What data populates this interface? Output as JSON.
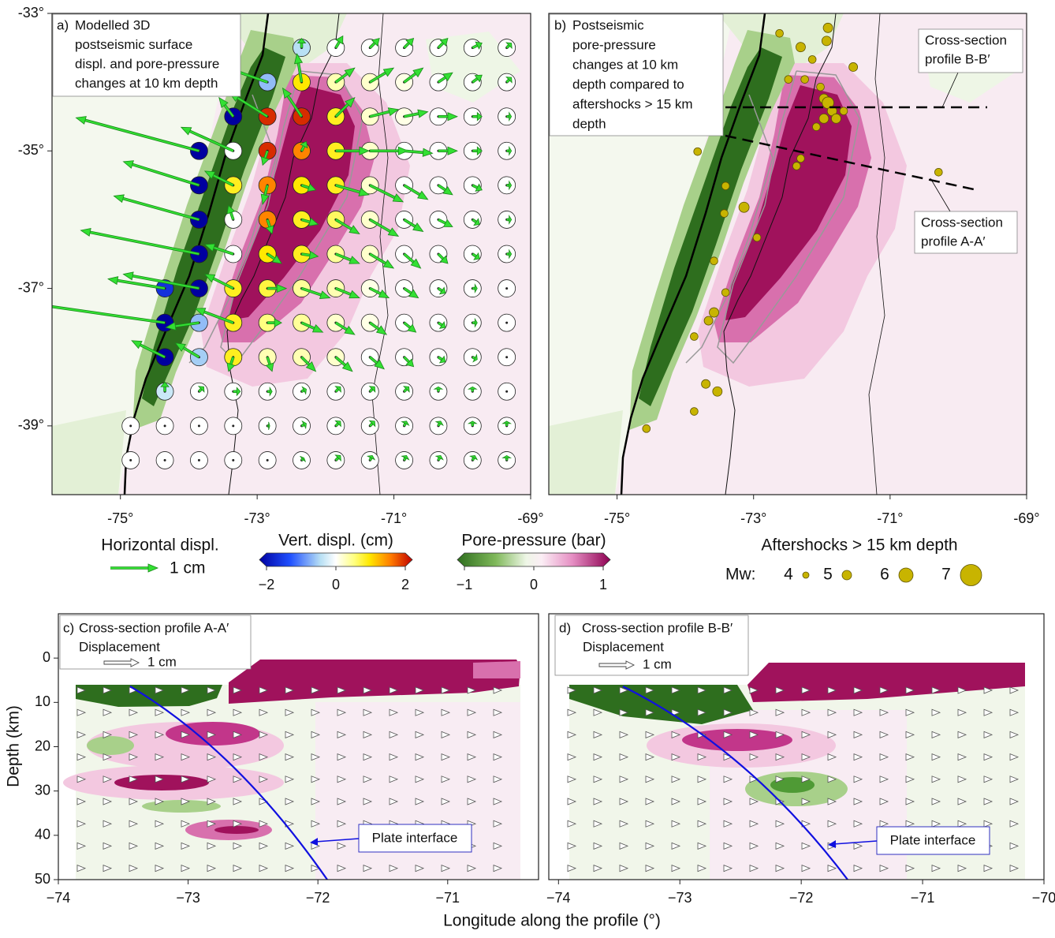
{
  "panel_a": {
    "label": "a)",
    "title_lines": [
      "Modelled 3D",
      "postseismic surface",
      "displ. and pore-pressure",
      "changes at 10 km depth"
    ],
    "xlim": [
      -76,
      -69
    ],
    "ylim": [
      -40,
      -33
    ],
    "xticks": [
      {
        "value": -75,
        "label": "-75°"
      },
      {
        "value": -73,
        "label": "-73°"
      },
      {
        "value": -71,
        "label": "-71°"
      },
      {
        "value": -69,
        "label": "-69°"
      }
    ],
    "yticks": [
      {
        "value": -33,
        "label": "-33°"
      },
      {
        "value": -35,
        "label": "-35°"
      },
      {
        "value": -37,
        "label": "-37°"
      },
      {
        "value": -39,
        "label": "-39°"
      }
    ],
    "stations": [
      {
        "lat": -33.5,
        "lon": [
          -72.35,
          -71.85,
          -71.35,
          -70.85,
          -70.35,
          -69.85,
          -69.35
        ],
        "up": [
          -0.4,
          0,
          0,
          0,
          0,
          0,
          0
        ],
        "east": [
          0,
          0.15,
          0.2,
          0.2,
          0.2,
          0.2,
          0.1
        ],
        "north": [
          0.2,
          0.25,
          0.2,
          0.2,
          0.2,
          0.1,
          0.1
        ]
      },
      {
        "lat": -34,
        "lon": [
          -72.85,
          -72.35,
          -71.85,
          -71.35,
          -70.85,
          -70.35,
          -69.85,
          -69.35
        ],
        "up": [
          -0.6,
          0.9,
          0.3,
          0.2,
          0.1,
          0,
          0,
          0
        ],
        "east": [
          -1.7,
          -0.1,
          0.4,
          0.5,
          0.4,
          0.3,
          0.2,
          0.1
        ],
        "north": [
          0.6,
          0.6,
          0.3,
          0.3,
          0.3,
          0.2,
          0.15,
          0.1
        ]
      },
      {
        "lat": -34.5,
        "lon": [
          -73.35,
          -72.85,
          -72.35,
          -71.85,
          -71.35,
          -70.85,
          -70.35,
          -69.85,
          -69.35
        ],
        "up": [
          -2,
          1.8,
          1.8,
          0.8,
          0.2,
          0.1,
          0,
          0,
          0
        ],
        "east": [
          -0.3,
          -0.8,
          -0.4,
          0.4,
          0.6,
          0.5,
          0.4,
          0.2,
          0.1
        ],
        "north": [
          0.4,
          0.5,
          0.6,
          0.4,
          0.15,
          0.1,
          0,
          0,
          0
        ]
      },
      {
        "lat": -35,
        "lon": [
          -73.85,
          -73.35,
          -72.85,
          -72.35,
          -71.85,
          -71.35,
          -70.85,
          -70.35,
          -69.85,
          -69.35
        ],
        "up": [
          -2,
          0,
          1.8,
          1.4,
          0.8,
          0.2,
          0,
          0,
          0,
          0
        ],
        "east": [
          -2.6,
          -1.1,
          -0.1,
          0.1,
          0.7,
          0.8,
          0.6,
          0.4,
          0.2,
          0.1
        ],
        "north": [
          0.7,
          0.5,
          -0.3,
          0.2,
          0,
          0,
          -0.05,
          0,
          0,
          0
        ]
      },
      {
        "lat": -35.5,
        "lon": [
          -73.85,
          -73.35,
          -72.85,
          -72.35,
          -71.85,
          -71.35,
          -70.85,
          -70.35,
          -69.85,
          -69.35
        ],
        "up": [
          -2,
          0.8,
          1.4,
          0.9,
          0.8,
          0.2,
          0,
          0,
          0,
          0
        ],
        "east": [
          -1.6,
          -0.6,
          -0.1,
          0.3,
          0.7,
          0.7,
          0.5,
          0.3,
          0.2,
          0.1
        ],
        "north": [
          0.5,
          0.3,
          -0.4,
          -0.1,
          -0.2,
          -0.35,
          -0.3,
          -0.2,
          -0.1,
          0
        ]
      },
      {
        "lat": -36,
        "lon": [
          -73.85,
          -73.35,
          -72.85,
          -72.35,
          -71.85,
          -71.35,
          -70.85,
          -70.35,
          -69.85,
          -69.35
        ],
        "up": [
          -2,
          0,
          1.4,
          0.8,
          0.6,
          0.2,
          0,
          0,
          0,
          0
        ],
        "east": [
          -1.8,
          -0.1,
          0.1,
          0.35,
          0.5,
          0.6,
          0.4,
          0.3,
          0.15,
          0.1
        ],
        "north": [
          0.5,
          0.3,
          -0.3,
          -0.1,
          -0.3,
          -0.35,
          -0.25,
          -0.15,
          -0.1,
          0
        ]
      },
      {
        "lat": -36.5,
        "lon": [
          -73.85,
          -73.35,
          -72.85,
          -72.35,
          -71.85,
          -71.35,
          -70.85,
          -70.35,
          -69.85,
          -69.35
        ],
        "up": [
          -2,
          0,
          0.9,
          0.8,
          0.4,
          0.2,
          0,
          0,
          0,
          0
        ],
        "east": [
          -2.5,
          -0.6,
          0.3,
          0.35,
          0.5,
          0.5,
          0.35,
          0.2,
          0.15,
          0.1
        ],
        "north": [
          0.5,
          0.2,
          -0.2,
          -0.05,
          -0.2,
          -0.3,
          -0.3,
          -0.2,
          -0.1,
          0
        ]
      },
      {
        "lat": -37,
        "lon": [
          -74.35,
          -73.85,
          -73.35,
          -72.85,
          -72.35,
          -71.85,
          -71.35,
          -70.85,
          -70.35,
          -69.85,
          -69.35
        ],
        "up": [
          -1.5,
          -2,
          0.8,
          0.7,
          0.4,
          0.3,
          0.1,
          0,
          0,
          0,
          0
        ],
        "east": [
          -1.2,
          -1.6,
          -0.6,
          0.4,
          0.6,
          0.5,
          0.4,
          0.3,
          0.15,
          0.1,
          0
        ],
        "north": [
          0.2,
          0.3,
          0.3,
          0,
          -0.2,
          -0.2,
          -0.2,
          -0.2,
          -0.1,
          0,
          0
        ]
      },
      {
        "lat": -37.5,
        "lon": [
          -74.35,
          -73.85,
          -73.35,
          -72.85,
          -72.35,
          -71.85,
          -71.35,
          -70.85,
          -70.35,
          -69.85,
          -69.35
        ],
        "up": [
          -2,
          -0.6,
          0.8,
          0.5,
          0.4,
          0.2,
          0.1,
          0,
          0,
          0,
          0
        ],
        "east": [
          -2.8,
          -0.7,
          -0.8,
          0.3,
          0.45,
          0.4,
          0.35,
          0.25,
          0.15,
          0.1,
          0
        ],
        "north": [
          0.4,
          -0.1,
          0.3,
          0,
          -0.2,
          -0.25,
          -0.25,
          -0.2,
          -0.1,
          0,
          0
        ]
      },
      {
        "lat": -38,
        "lon": [
          -74.35,
          -73.85,
          -73.35,
          -72.85,
          -72.35,
          -71.85,
          -71.35,
          -70.85,
          -70.35,
          -69.85,
          -69.35
        ],
        "up": [
          -2,
          -0.5,
          0.8,
          0.3,
          0.3,
          0.2,
          0,
          0,
          0,
          0,
          0
        ],
        "east": [
          -0.7,
          -0.5,
          -0.1,
          0.1,
          0.3,
          0.35,
          0.3,
          0.2,
          0.15,
          0.1,
          0
        ],
        "north": [
          0.35,
          0.3,
          -0.3,
          -0.3,
          -0.3,
          -0.3,
          -0.25,
          -0.2,
          -0.1,
          -0.05,
          0
        ]
      },
      {
        "lat": -38.5,
        "lon": [
          -74.35,
          -73.85,
          -73.35,
          -72.85,
          -72.35,
          -71.85,
          -71.35,
          -70.85,
          -70.35,
          -69.85,
          -69.35
        ],
        "up": [
          -0.3,
          0,
          0,
          0,
          0,
          0,
          0,
          0,
          0,
          0,
          0
        ],
        "east": [
          0,
          0.1,
          0.15,
          0.1,
          0.1,
          0.1,
          0.1,
          0.1,
          0,
          0,
          0
        ],
        "north": [
          0.2,
          0.1,
          0,
          0,
          0.05,
          0.1,
          0.1,
          0.1,
          0.1,
          0.1,
          0
        ]
      },
      {
        "lat": -39,
        "lon": [
          -74.85,
          -74.35,
          -73.85,
          -73.35,
          -72.85,
          -72.35,
          -71.85,
          -71.35,
          -70.85,
          -70.35,
          -69.85,
          -69.35
        ],
        "up": [
          0,
          0,
          0,
          0,
          0,
          0,
          0,
          0,
          0,
          0,
          0,
          0
        ],
        "east": [
          0,
          0,
          0,
          0,
          0.05,
          0.1,
          0.1,
          0.1,
          0.05,
          0.05,
          0,
          0
        ],
        "north": [
          0,
          0,
          0,
          0,
          0,
          0.05,
          0.1,
          0.1,
          0.1,
          0.1,
          0.1,
          0.1
        ]
      },
      {
        "lat": -39.5,
        "lon": [
          -74.85,
          -74.35,
          -73.85,
          -73.35,
          -72.85,
          -72.35,
          -71.85,
          -71.35,
          -70.85,
          -70.35,
          -69.85,
          -69.35
        ],
        "up": [
          0,
          0,
          0,
          0,
          0,
          0,
          0,
          0,
          0,
          0,
          0,
          0
        ],
        "east": [
          0,
          0,
          0,
          0,
          0,
          0.05,
          0.1,
          0.05,
          0.05,
          0.05,
          0.05,
          0
        ],
        "north": [
          0,
          0,
          0,
          0,
          0,
          0.05,
          0.1,
          0.1,
          0.1,
          0.1,
          0.1,
          0.1
        ]
      }
    ]
  },
  "panel_b": {
    "label": "b)",
    "title_lines": [
      "Postseismic",
      "pore-pressure",
      "changes at 10 km",
      "depth compared to",
      "aftershocks > 15 km",
      "depth"
    ],
    "xlim": [
      -76,
      -69
    ],
    "ylim": [
      -40,
      -33
    ],
    "xticks": [
      {
        "value": -75,
        "label": "-75°"
      },
      {
        "value": -73,
        "label": "-73°"
      },
      {
        "value": -71,
        "label": "-71°"
      },
      {
        "value": -69,
        "label": "-69°"
      }
    ],
    "profile_labels": [
      {
        "lines": [
          "Cross-section",
          "profile B-B′"
        ]
      },
      {
        "lines": [
          "Cross-section",
          "profile A-A′"
        ]
      }
    ],
    "aftershocks": {
      "lon": [
        -72.62,
        -71.91,
        -71.93,
        -72.31,
        -72.14,
        -71.54,
        -72.25,
        -72.02,
        -71.97,
        -71.91,
        -71.85,
        -71.79,
        -71.97,
        -71.68,
        -72.49,
        -72.08,
        -72.31,
        -72.37,
        -73.82,
        -73.41,
        -73.14,
        -73.43,
        -72.95,
        -73.58,
        -70.29,
        -73.41,
        -73.58,
        -73.66,
        -73.87,
        -73.7,
        -73.53,
        -74.57,
        -73.87
      ],
      "lat": [
        -33.29,
        -33.21,
        -33.4,
        -33.49,
        -33.67,
        -33.78,
        -33.96,
        -34.07,
        -34.24,
        -34.3,
        -34.42,
        -34.53,
        -34.53,
        -34.42,
        -33.96,
        -34.65,
        -35.11,
        -35.22,
        -35.01,
        -35.51,
        -35.82,
        -35.91,
        -36.26,
        -36.6,
        -35.31,
        -37.06,
        -37.35,
        -37.47,
        -37.7,
        -38.39,
        -38.5,
        -39.04,
        -38.79
      ],
      "mw": [
        4.5,
        5,
        5,
        5,
        4.5,
        4.8,
        4.5,
        4.5,
        5,
        5.5,
        5,
        5,
        5,
        4.5,
        4.5,
        4.5,
        4.5,
        4.5,
        4.5,
        4.5,
        5.2,
        4.5,
        4.5,
        4.5,
        4.5,
        4.5,
        5,
        4.8,
        4.5,
        4.8,
        5,
        4.5,
        4.5
      ]
    }
  },
  "legend": {
    "horizontal": {
      "title": "Horizontal displ.",
      "scale_label": "1 cm",
      "scale": 1
    },
    "vertical": {
      "title": "Vert. displ. (cm)",
      "lim": [
        -2,
        2
      ],
      "ticks": [
        {
          "value": -2,
          "label": "−2"
        },
        0,
        2
      ]
    },
    "pore": {
      "title": "Pore-pressure (bar)",
      "lim": [
        -1,
        1
      ],
      "ticks": [
        {
          "value": -1,
          "label": "−1"
        },
        0,
        1
      ]
    },
    "aftershocks": {
      "title": "Aftershocks > 15 km depth",
      "mw_label": "Mw:",
      "mw": [
        4,
        5,
        6,
        7
      ]
    }
  },
  "panel_c": {
    "label": "c)",
    "title": "Cross-section profile A-A′",
    "displacement_label": "Displacement",
    "scale_label": "1 cm",
    "annotation": "Plate interface",
    "xlim": [
      -74,
      -70.3
    ],
    "ylim": [
      -10,
      50
    ],
    "y_inverted": true,
    "xticks": [
      {
        "value": -74,
        "label": "−74"
      },
      {
        "value": -73,
        "label": "−73"
      },
      {
        "value": -72,
        "label": "−72"
      },
      {
        "value": -71,
        "label": "−71"
      }
    ],
    "yticks": [
      0,
      10,
      20,
      30,
      40,
      50
    ]
  },
  "panel_d": {
    "label": "d)",
    "title": "Cross-section profile B-B′",
    "displacement_label": "Displacement",
    "scale_label": "1 cm",
    "annotation": "Plate interface",
    "xlim": [
      -74.08,
      -70
    ],
    "ylim": [
      -10,
      50
    ],
    "y_inverted": true,
    "xticks": [
      {
        "value": -74,
        "label": "−74"
      },
      {
        "value": -73,
        "label": "−73"
      },
      {
        "value": -72,
        "label": "−72"
      },
      {
        "value": -71,
        "label": "−71"
      },
      {
        "value": -70,
        "label": "−70"
      }
    ]
  },
  "y_label": "Depth (km)",
  "x_label": "Longitude along the profile (°)"
}
